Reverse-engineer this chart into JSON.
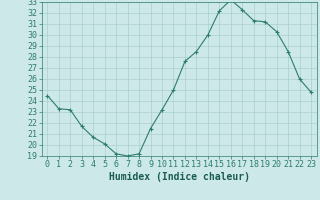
{
  "x": [
    0,
    1,
    2,
    3,
    4,
    5,
    6,
    7,
    8,
    9,
    10,
    11,
    12,
    13,
    14,
    15,
    16,
    17,
    18,
    19,
    20,
    21,
    22,
    23
  ],
  "y": [
    24.5,
    23.3,
    23.2,
    21.7,
    20.7,
    20.1,
    19.2,
    19.0,
    19.2,
    21.5,
    23.2,
    25.0,
    27.6,
    28.5,
    30.0,
    32.2,
    33.2,
    32.3,
    31.3,
    31.2,
    30.3,
    28.5,
    26.0,
    24.8
  ],
  "xlabel": "Humidex (Indice chaleur)",
  "ylim": [
    19,
    33
  ],
  "xlim": [
    -0.5,
    23.5
  ],
  "yticks": [
    19,
    20,
    21,
    22,
    23,
    24,
    25,
    26,
    27,
    28,
    29,
    30,
    31,
    32,
    33
  ],
  "xticks": [
    0,
    1,
    2,
    3,
    4,
    5,
    6,
    7,
    8,
    9,
    10,
    11,
    12,
    13,
    14,
    15,
    16,
    17,
    18,
    19,
    20,
    21,
    22,
    23
  ],
  "line_color": "#2e7d6e",
  "marker": "+",
  "bg_color": "#cde8e8",
  "grid_color": "#aacfcf",
  "tick_color": "#2e7d6e",
  "label_color": "#1a5c52",
  "font_size": 6,
  "xlabel_fontsize": 7
}
